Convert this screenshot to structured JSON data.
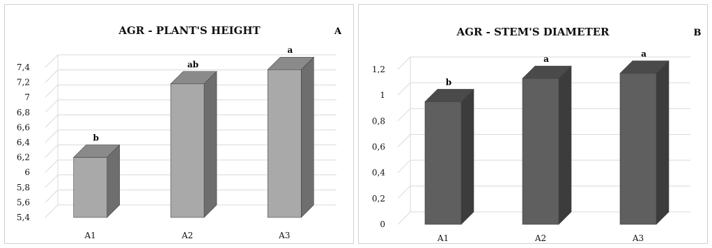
{
  "chart_data": [
    {
      "type": "bar",
      "title": "AGR - PLANT'S HEIGHT",
      "panel_label": "A",
      "categories": [
        "A1",
        "A2",
        "A3"
      ],
      "values": [
        6.2,
        7.18,
        7.37
      ],
      "significance": [
        "b",
        "ab",
        "a"
      ],
      "yticks": [
        "5,4",
        "5,6",
        "5,8",
        "6",
        "6,2",
        "6,4",
        "6,6",
        "6,8",
        "7",
        "7,2",
        "7,4"
      ],
      "ylim": [
        5.4,
        7.4
      ],
      "grid": true,
      "bar_color": "#a9a9a9",
      "bar_side_color": "#6e6e6e",
      "bar_top_color": "#8a8a8a"
    },
    {
      "type": "bar",
      "title": "AGR - STEM'S DIAMETER",
      "panel_label": "B",
      "categories": [
        "A1",
        "A2",
        "A3"
      ],
      "values": [
        0.95,
        1.13,
        1.17
      ],
      "significance": [
        "b",
        "a",
        "a"
      ],
      "yticks": [
        "0",
        "0,2",
        "0,4",
        "0,6",
        "0,8",
        "1",
        "1,2"
      ],
      "ylim": [
        0,
        1.2
      ],
      "grid": true,
      "bar_color": "#5f5f5f",
      "bar_side_color": "#3c3c3c",
      "bar_top_color": "#4a4a4a"
    }
  ]
}
